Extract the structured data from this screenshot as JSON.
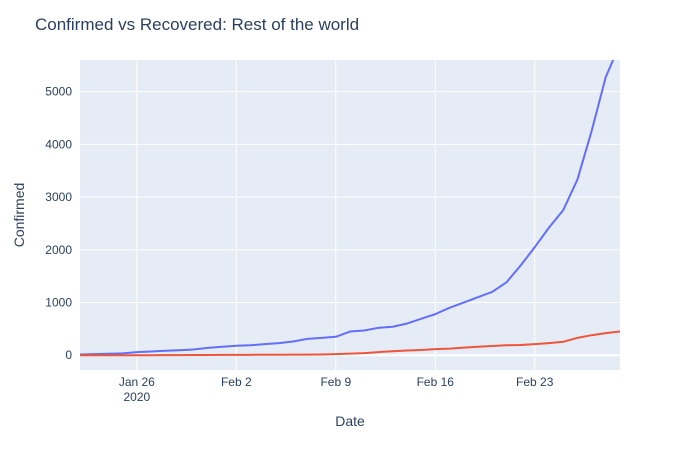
{
  "chart_data": {
    "type": "line",
    "title": "Confirmed vs Recovered: Rest of the world",
    "xlabel": "Date",
    "ylabel": "Confirmed",
    "x_range": [
      "2020-01-22",
      "2020-02-29"
    ],
    "ylim": [
      -280,
      5600
    ],
    "x_ticks": [
      {
        "date": "2020-01-26",
        "label": "Jan 26",
        "sublabel": "2020"
      },
      {
        "date": "2020-02-02",
        "label": "Feb 2",
        "sublabel": ""
      },
      {
        "date": "2020-02-09",
        "label": "Feb 9",
        "sublabel": ""
      },
      {
        "date": "2020-02-16",
        "label": "Feb 16",
        "sublabel": ""
      },
      {
        "date": "2020-02-23",
        "label": "Feb 23",
        "sublabel": ""
      }
    ],
    "y_ticks": [
      0,
      1000,
      2000,
      3000,
      4000,
      5000
    ],
    "grid": true,
    "legend": "none",
    "colors": {
      "plot_bg": "#e5ecf6",
      "grid": "#ffffff",
      "text": "#2a3f5f"
    },
    "series": [
      {
        "color": "#636efa",
        "points": [
          [
            "2020-01-22",
            15
          ],
          [
            "2020-01-23",
            20
          ],
          [
            "2020-01-24",
            27
          ],
          [
            "2020-01-25",
            35
          ],
          [
            "2020-01-26",
            60
          ],
          [
            "2020-01-27",
            70
          ],
          [
            "2020-01-28",
            85
          ],
          [
            "2020-01-29",
            95
          ],
          [
            "2020-01-30",
            110
          ],
          [
            "2020-01-31",
            140
          ],
          [
            "2020-02-01",
            160
          ],
          [
            "2020-02-02",
            180
          ],
          [
            "2020-02-03",
            190
          ],
          [
            "2020-02-04",
            210
          ],
          [
            "2020-02-05",
            230
          ],
          [
            "2020-02-06",
            260
          ],
          [
            "2020-02-07",
            310
          ],
          [
            "2020-02-08",
            330
          ],
          [
            "2020-02-09",
            350
          ],
          [
            "2020-02-10",
            450
          ],
          [
            "2020-02-11",
            470
          ],
          [
            "2020-02-12",
            520
          ],
          [
            "2020-02-13",
            540
          ],
          [
            "2020-02-14",
            600
          ],
          [
            "2020-02-15",
            690
          ],
          [
            "2020-02-16",
            780
          ],
          [
            "2020-02-17",
            900
          ],
          [
            "2020-02-18",
            1000
          ],
          [
            "2020-02-19",
            1100
          ],
          [
            "2020-02-20",
            1200
          ],
          [
            "2020-02-21",
            1380
          ],
          [
            "2020-02-22",
            1700
          ],
          [
            "2020-02-23",
            2050
          ],
          [
            "2020-02-24",
            2420
          ],
          [
            "2020-02-25",
            2750
          ],
          [
            "2020-02-26",
            3330
          ],
          [
            "2020-02-27",
            4250
          ],
          [
            "2020-02-28",
            5280
          ],
          [
            "2020-02-29",
            5900
          ]
        ]
      },
      {
        "color": "#ef553b",
        "points": [
          [
            "2020-01-22",
            0
          ],
          [
            "2020-01-23",
            0
          ],
          [
            "2020-01-24",
            0
          ],
          [
            "2020-01-25",
            0
          ],
          [
            "2020-01-26",
            0
          ],
          [
            "2020-01-27",
            0
          ],
          [
            "2020-01-28",
            2
          ],
          [
            "2020-01-29",
            3
          ],
          [
            "2020-01-30",
            4
          ],
          [
            "2020-01-31",
            5
          ],
          [
            "2020-02-01",
            6
          ],
          [
            "2020-02-02",
            7
          ],
          [
            "2020-02-03",
            8
          ],
          [
            "2020-02-04",
            9
          ],
          [
            "2020-02-05",
            10
          ],
          [
            "2020-02-06",
            11
          ],
          [
            "2020-02-07",
            12
          ],
          [
            "2020-02-08",
            14
          ],
          [
            "2020-02-09",
            20
          ],
          [
            "2020-02-10",
            30
          ],
          [
            "2020-02-11",
            40
          ],
          [
            "2020-02-12",
            60
          ],
          [
            "2020-02-13",
            75
          ],
          [
            "2020-02-14",
            90
          ],
          [
            "2020-02-15",
            100
          ],
          [
            "2020-02-16",
            115
          ],
          [
            "2020-02-17",
            125
          ],
          [
            "2020-02-18",
            145
          ],
          [
            "2020-02-19",
            160
          ],
          [
            "2020-02-20",
            175
          ],
          [
            "2020-02-21",
            190
          ],
          [
            "2020-02-22",
            195
          ],
          [
            "2020-02-23",
            210
          ],
          [
            "2020-02-24",
            230
          ],
          [
            "2020-02-25",
            255
          ],
          [
            "2020-02-26",
            330
          ],
          [
            "2020-02-27",
            380
          ],
          [
            "2020-02-28",
            420
          ],
          [
            "2020-02-29",
            450
          ]
        ]
      }
    ]
  }
}
